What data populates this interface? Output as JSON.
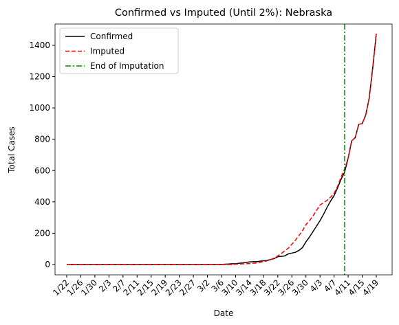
{
  "chart_data": {
    "type": "line",
    "title": "Confirmed vs Imputed (Until 2%): Nebraska",
    "xlabel": "Date",
    "ylabel": "Total Cases",
    "categories": [
      "1/22",
      null,
      null,
      null,
      "1/26",
      null,
      null,
      null,
      "1/30",
      null,
      null,
      null,
      "2/3",
      null,
      null,
      null,
      "2/7",
      null,
      null,
      null,
      "2/11",
      null,
      null,
      null,
      "2/15",
      null,
      null,
      null,
      "2/19",
      null,
      null,
      null,
      "2/23",
      null,
      null,
      null,
      "2/27",
      null,
      null,
      null,
      "3/2",
      null,
      null,
      null,
      "3/6",
      null,
      null,
      null,
      "3/10",
      null,
      null,
      null,
      "3/14",
      null,
      null,
      null,
      "3/18",
      null,
      null,
      null,
      "3/22",
      null,
      null,
      null,
      "3/26",
      null,
      null,
      null,
      "3/30",
      null,
      null,
      null,
      "4/3",
      null,
      null,
      null,
      "4/7",
      null,
      null,
      null,
      "4/11",
      null,
      null,
      null,
      "4/15",
      null,
      null,
      null,
      "4/19"
    ],
    "series": [
      {
        "name": "Confirmed",
        "color": "#000000",
        "linestyle": "solid",
        "values": [
          0,
          0,
          0,
          0,
          0,
          0,
          0,
          0,
          0,
          0,
          0,
          0,
          0,
          0,
          0,
          0,
          0,
          0,
          0,
          0,
          0,
          0,
          0,
          0,
          0,
          0,
          0,
          0,
          0,
          0,
          0,
          0,
          0,
          0,
          0,
          0,
          0,
          0,
          0,
          0,
          0,
          0,
          0,
          0,
          0,
          2,
          3,
          5,
          5,
          8,
          10,
          13,
          17,
          18,
          18,
          21,
          24,
          27,
          32,
          38,
          50,
          52,
          55,
          68,
          73,
          78,
          90,
          108,
          145,
          175,
          210,
          245,
          280,
          320,
          365,
          405,
          440,
          490,
          545,
          590,
          680,
          790,
          810,
          895,
          900,
          955,
          1065,
          1260,
          1474
        ]
      },
      {
        "name": "Imputed",
        "color": "#ff0000",
        "linestyle": "dashed",
        "values": [
          0,
          0,
          0,
          0,
          0,
          0,
          0,
          0,
          0,
          0,
          0,
          0,
          0,
          0,
          0,
          0,
          0,
          0,
          0,
          0,
          0,
          0,
          0,
          0,
          0,
          0,
          0,
          0,
          0,
          0,
          0,
          0,
          0,
          0,
          0,
          0,
          0,
          0,
          0,
          0,
          0,
          0,
          0,
          0,
          0,
          0,
          0,
          0,
          2,
          3,
          4,
          5,
          6,
          8,
          10,
          14,
          18,
          24,
          32,
          42,
          55,
          70,
          88,
          105,
          130,
          155,
          185,
          215,
          255,
          280,
          310,
          345,
          380,
          395,
          410,
          430,
          455,
          500,
          560,
          610,
          680,
          790,
          810,
          895,
          900,
          955,
          1065,
          1260,
          1474
        ]
      }
    ],
    "vline": {
      "name": "End of Imputation",
      "x": "4/10",
      "color": "#008000",
      "linestyle": "dashdot"
    },
    "ylim": [
      -66,
      1536
    ],
    "yticks": [
      0,
      200,
      400,
      600,
      800,
      1000,
      1200,
      1400
    ],
    "legend": "upper left"
  }
}
